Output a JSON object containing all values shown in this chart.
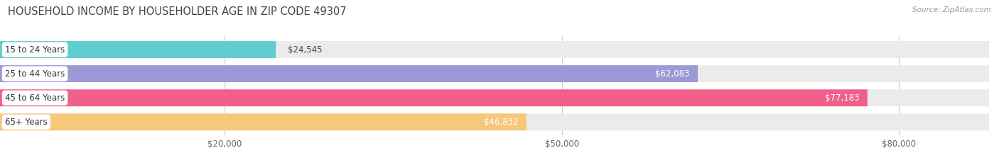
{
  "title": "HOUSEHOLD INCOME BY HOUSEHOLDER AGE IN ZIP CODE 49307",
  "source": "Source: ZipAtlas.com",
  "categories": [
    "15 to 24 Years",
    "25 to 44 Years",
    "45 to 64 Years",
    "65+ Years"
  ],
  "values": [
    24545,
    62083,
    77183,
    46832
  ],
  "bar_colors": [
    "#5ecece",
    "#9b99d6",
    "#f0608a",
    "#f5c87a"
  ],
  "bar_bg_color": "#ebebeb",
  "x_ticks": [
    20000,
    50000,
    80000
  ],
  "x_tick_labels": [
    "$20,000",
    "$50,000",
    "$80,000"
  ],
  "xmax": 88000,
  "xmin": 0,
  "value_labels": [
    "$24,545",
    "$62,083",
    "$77,183",
    "$46,832"
  ],
  "title_fontsize": 10.5,
  "source_fontsize": 7.5,
  "bar_label_fontsize": 8.5,
  "value_fontsize": 8.5
}
